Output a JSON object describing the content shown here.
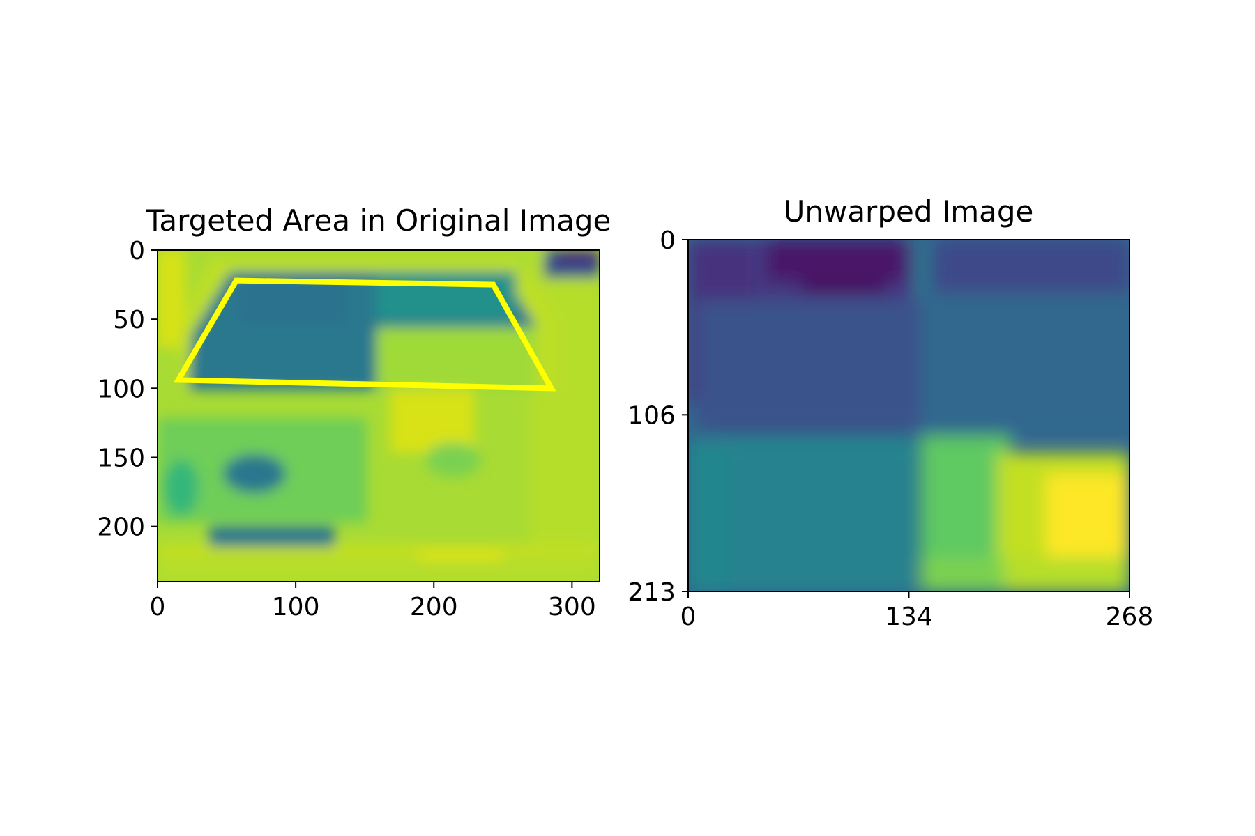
{
  "chart_data": [
    {
      "type": "heatmap",
      "title": "Targeted Area in Original Image",
      "xlim": [
        0,
        320
      ],
      "ylim": [
        240,
        0
      ],
      "xticks": [
        0,
        100,
        200,
        300
      ],
      "yticks": [
        0,
        50,
        100,
        150,
        200
      ],
      "xtick_labels": [
        "0",
        "100",
        "200",
        "300"
      ],
      "ytick_labels": [
        "0",
        "50",
        "100",
        "150",
        "200"
      ],
      "colormap": "viridis",
      "overlay_polygon": {
        "color": "#ffff00",
        "points": [
          [
            57,
            22
          ],
          [
            243,
            25
          ],
          [
            285,
            100
          ],
          [
            15,
            94
          ]
        ]
      }
    },
    {
      "type": "heatmap",
      "title": "Unwarped Image",
      "xlim": [
        0,
        268
      ],
      "ylim": [
        213,
        0
      ],
      "xticks": [
        0,
        134,
        268
      ],
      "yticks": [
        0,
        106,
        213
      ],
      "xtick_labels": [
        "0",
        "134",
        "268"
      ],
      "ytick_labels": [
        "0",
        "106",
        "213"
      ],
      "colormap": "viridis"
    }
  ]
}
